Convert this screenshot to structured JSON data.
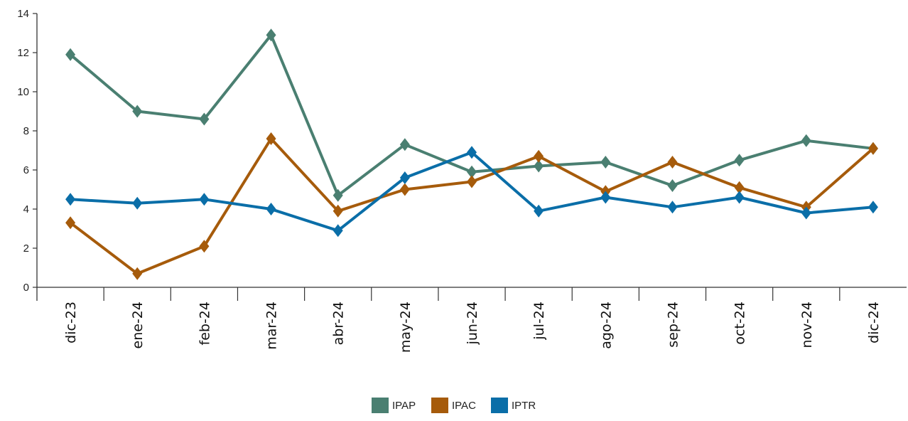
{
  "chart_data": {
    "type": "line",
    "categories": [
      "dic-23",
      "ene-24",
      "feb-24",
      "mar-24",
      "abr-24",
      "may-24",
      "jun-24",
      "jul-24",
      "ago-24",
      "sep-24",
      "oct-24",
      "nov-24",
      "dic-24"
    ],
    "series": [
      {
        "name": "IPAP",
        "color": "#4a7f71",
        "values": [
          11.9,
          9.0,
          8.6,
          12.9,
          4.7,
          7.3,
          5.9,
          6.2,
          6.4,
          5.2,
          6.5,
          7.5,
          7.1
        ]
      },
      {
        "name": "IPAC",
        "color": "#a65b0b",
        "values": [
          3.3,
          0.7,
          2.1,
          7.6,
          3.9,
          5.0,
          5.4,
          6.7,
          4.9,
          6.4,
          5.1,
          4.1,
          7.1
        ]
      },
      {
        "name": "IPTR",
        "color": "#0a6ea8",
        "values": [
          4.5,
          4.3,
          4.5,
          4.0,
          2.9,
          5.6,
          6.9,
          3.9,
          4.6,
          4.1,
          4.6,
          3.8,
          4.1
        ]
      }
    ],
    "yticks": [
      "0",
      "2",
      "4",
      "6",
      "8",
      "10",
      "12",
      "14"
    ],
    "ylim": [
      0,
      14
    ],
    "grid": false,
    "legend": "bottom-center",
    "marker": "diamond"
  }
}
